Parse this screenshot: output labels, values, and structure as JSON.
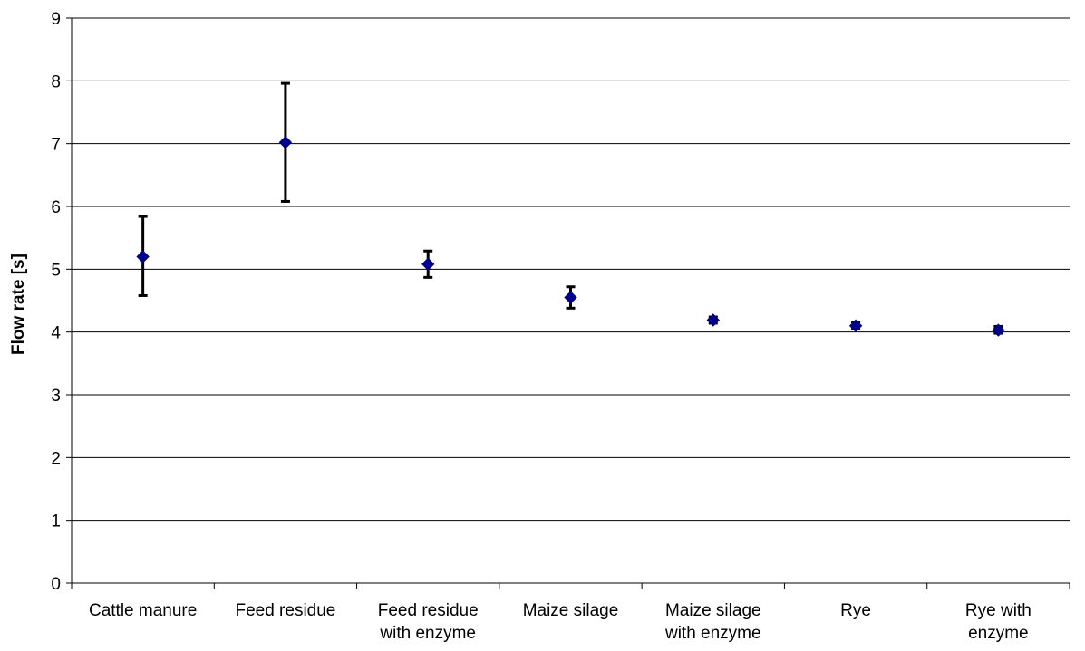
{
  "chart_data": {
    "type": "scatter",
    "title": "",
    "xlabel": "",
    "ylabel": "Flow rate [s]",
    "ylim": [
      0,
      9
    ],
    "yticks": [
      0,
      1,
      2,
      3,
      4,
      5,
      6,
      7,
      8,
      9
    ],
    "grid": true,
    "legend": "none",
    "categories": [
      [
        "Cattle manure"
      ],
      [
        "Feed residue"
      ],
      [
        "Feed residue",
        "with enzyme"
      ],
      [
        "Maize silage"
      ],
      [
        "Maize silage",
        "with enzyme"
      ],
      [
        "Rye"
      ],
      [
        "Rye with",
        "enzyme"
      ]
    ],
    "series": [
      {
        "values": [
          5.2,
          7.02,
          5.08,
          4.55,
          4.19,
          4.1,
          4.03
        ],
        "error_low": [
          4.58,
          6.08,
          4.87,
          4.38,
          4.14,
          4.05,
          3.98
        ],
        "error_high": [
          5.84,
          7.96,
          5.29,
          4.72,
          4.24,
          4.16,
          4.09
        ],
        "marker_color": "#00008B",
        "error_bar_color": "#000000"
      }
    ]
  }
}
